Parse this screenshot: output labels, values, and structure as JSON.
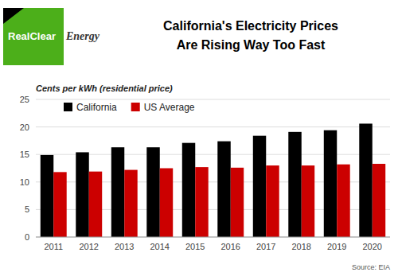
{
  "chart_data": {
    "type": "bar",
    "title": "California's Electricity Prices",
    "subtitle": "Are Rising Way Too Fast",
    "y_label": "Cents per kWh (residential price)",
    "annotations": [
      "RealClear",
      "Energy",
      "Source: EIA"
    ],
    "categories": [
      "2011",
      "2012",
      "2013",
      "2014",
      "2015",
      "2016",
      "2017",
      "2018",
      "2019",
      "2020"
    ],
    "series": [
      {
        "name": "California",
        "color": "#000000",
        "values": [
          14.9,
          15.4,
          16.3,
          16.3,
          17.1,
          17.4,
          18.4,
          19.1,
          19.4,
          20.6
        ]
      },
      {
        "name": "US Average",
        "color": "#cc0000",
        "values": [
          11.8,
          11.9,
          12.2,
          12.5,
          12.7,
          12.6,
          13.0,
          13.0,
          13.2,
          13.3
        ]
      }
    ],
    "ylim": [
      0,
      25
    ],
    "yticks": [
      0,
      5,
      10,
      15,
      20,
      25
    ],
    "grid": true,
    "legend": "top-left"
  }
}
